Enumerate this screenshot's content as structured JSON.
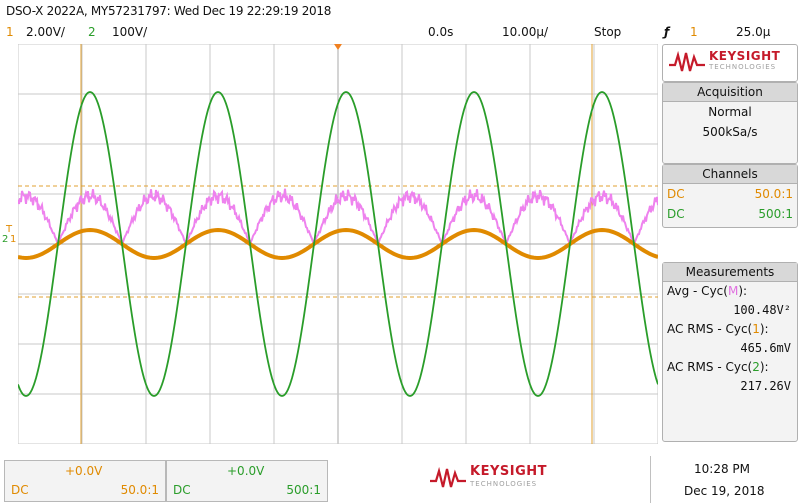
{
  "header": {
    "title": "DSO-X 2022A, MY57231797: Wed Dec 19 22:29:19 2018",
    "ch1_num": "1",
    "ch1_scale": "2.00V/",
    "ch2_num": "2",
    "ch2_scale": "100V/",
    "time_offset": "0.0s",
    "time_scale": "10.00µ/",
    "run_state": "Stop",
    "trigger_icon": "ƒ",
    "trigger_channel": "1",
    "trigger_level": "25.0µ"
  },
  "logo": {
    "word": "KEYSIGHT",
    "sub": "TECHNOLOGIES"
  },
  "acquisition": {
    "title": "Acquisition",
    "mode": "Normal",
    "rate": "500kSa/s"
  },
  "channels": {
    "title": "Channels",
    "rows": [
      {
        "coupling": "DC",
        "probe": "50.0:1",
        "color": "#e08a00"
      },
      {
        "coupling": "DC",
        "probe": "500:1",
        "color": "#2a9d2a"
      }
    ]
  },
  "measurements": {
    "title": "Measurements",
    "items": [
      {
        "label": "Avg - Cyc(",
        "src": "M",
        "close": "):",
        "value": "100.48V²",
        "src_color": "#e070e0"
      },
      {
        "label": "AC RMS - Cyc(",
        "src": "1",
        "close": "):",
        "value": "465.6mV",
        "src_color": "#e08a00"
      },
      {
        "label": "AC RMS - Cyc(",
        "src": "2",
        "close": "):",
        "value": "217.26V",
        "src_color": "#2a9d2a"
      }
    ]
  },
  "bottom": {
    "ch1": {
      "offset": "+0.0V",
      "coupling": "DC",
      "probe": "50.0:1"
    },
    "ch2": {
      "offset": "+0.0V",
      "coupling": "DC",
      "probe": "500:1"
    },
    "time": "10:28 PM",
    "date": "Dec 19, 2018"
  },
  "markers": {
    "ch1_ref": "1",
    "ch2_ref": "2",
    "trigger_level_marker": "T"
  },
  "colors": {
    "ch1": "#e08a00",
    "ch2": "#2a9d2a",
    "math": "#ee82ee",
    "cursor": "#e0a030",
    "grid": "#c8c8c8"
  }
}
